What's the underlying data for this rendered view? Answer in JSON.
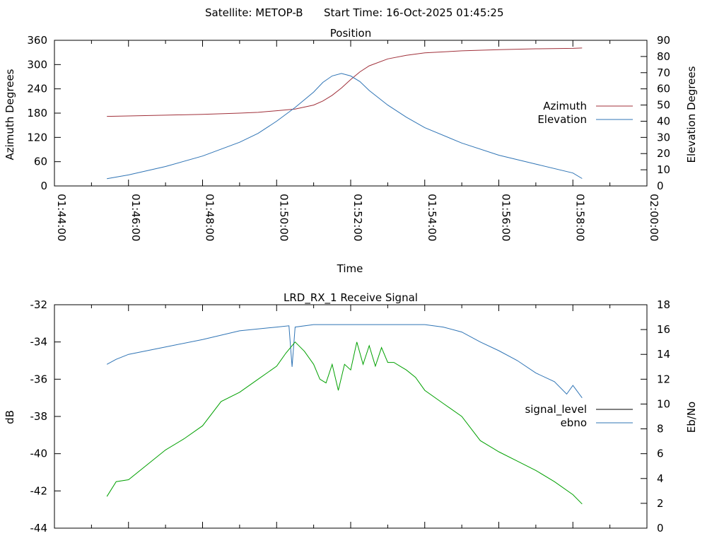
{
  "header": {
    "satellite_label": "Satellite: METOP-B",
    "start_time_label": "Start Time: 16-Oct-2025 01:45:25"
  },
  "colors": {
    "azimuth": "#a0303a",
    "elevation": "#2f74b5",
    "signal_level": "#000000",
    "ebno": "#2f74b5",
    "green_trace": "#00a000"
  },
  "chart_data": [
    {
      "type": "line",
      "title": "Position",
      "xlabel": "Time",
      "ylabel_left": "Azimuth Degrees",
      "ylabel_right": "Elevation Degrees",
      "x_tick_labels": [
        "01:44:00",
        "01:46:00",
        "01:48:00",
        "01:50:00",
        "01:52:00",
        "01:54:00",
        "01:56:00",
        "01:58:00",
        "02:00:00"
      ],
      "x_range_minutes": [
        0,
        16
      ],
      "ylim_left": [
        0,
        360
      ],
      "yticks_left": [
        "0",
        "60",
        "120",
        "180",
        "240",
        "300",
        "360"
      ],
      "ylim_right": [
        0,
        90
      ],
      "yticks_right": [
        "0",
        "10",
        "20",
        "30",
        "40",
        "50",
        "60",
        "70",
        "80",
        "90"
      ],
      "legend": {
        "position": "right",
        "entries": [
          "Azimuth",
          "Elevation"
        ]
      },
      "series": [
        {
          "name": "Azimuth",
          "axis": "left",
          "x": [
            "01:45:25",
            "01:46:00",
            "01:47:00",
            "01:48:00",
            "01:49:00",
            "01:49:30",
            "01:50:00",
            "01:50:30",
            "01:51:00",
            "01:51:15",
            "01:51:30",
            "01:51:45",
            "01:52:00",
            "01:52:15",
            "01:52:30",
            "01:53:00",
            "01:53:30",
            "01:54:00",
            "01:55:00",
            "01:56:00",
            "01:57:00",
            "01:58:00",
            "01:58:15"
          ],
          "values": [
            172,
            173,
            175,
            177,
            180,
            182,
            186,
            190,
            200,
            210,
            224,
            242,
            263,
            282,
            297,
            314,
            323,
            329,
            334,
            337,
            339,
            340,
            341
          ]
        },
        {
          "name": "Elevation",
          "axis": "right",
          "x": [
            "01:45:25",
            "01:46:00",
            "01:47:00",
            "01:48:00",
            "01:49:00",
            "01:49:30",
            "01:50:00",
            "01:50:30",
            "01:51:00",
            "01:51:15",
            "01:51:30",
            "01:51:45",
            "01:52:00",
            "01:52:15",
            "01:52:30",
            "01:53:00",
            "01:53:30",
            "01:54:00",
            "01:55:00",
            "01:56:00",
            "01:57:00",
            "01:58:00",
            "01:58:15"
          ],
          "values": [
            4.5,
            6.8,
            12,
            18.5,
            27,
            32.5,
            40,
            48.5,
            58,
            64,
            68,
            69.5,
            68,
            64.5,
            59,
            50,
            42.5,
            36,
            26.5,
            19,
            13.5,
            8,
            4.6
          ]
        }
      ]
    },
    {
      "type": "line",
      "title": "LRD_RX_1 Receive Signal",
      "xlabel": "",
      "ylabel_left": "dB",
      "ylabel_right": "Eb/No",
      "x_range_minutes": [
        0,
        16
      ],
      "ylim_left": [
        -44,
        -32
      ],
      "yticks_left": [
        "-44",
        "-42",
        "-40",
        "-38",
        "-36",
        "-34",
        "-32"
      ],
      "ylim_right": [
        0,
        18
      ],
      "yticks_right": [
        "0",
        "2",
        "4",
        "6",
        "8",
        "10",
        "12",
        "14",
        "16",
        "18"
      ],
      "legend": {
        "position": "right",
        "entries": [
          "signal_level",
          "ebno"
        ]
      },
      "series": [
        {
          "name": "ebno",
          "axis": "right",
          "x": [
            "01:45:25",
            "01:45:40",
            "01:46:00",
            "01:47:00",
            "01:48:00",
            "01:49:00",
            "01:50:00",
            "01:50:20",
            "01:50:25",
            "01:50:30",
            "01:51:00",
            "01:52:00",
            "01:53:00",
            "01:54:00",
            "01:54:30",
            "01:55:00",
            "01:55:30",
            "01:56:00",
            "01:56:30",
            "01:57:00",
            "01:57:30",
            "01:57:50",
            "01:58:00",
            "01:58:15"
          ],
          "values": [
            13.2,
            13.6,
            14.0,
            14.6,
            15.2,
            15.9,
            16.2,
            16.3,
            13.0,
            16.2,
            16.4,
            16.4,
            16.4,
            16.4,
            16.2,
            15.8,
            15.0,
            14.3,
            13.5,
            12.5,
            11.8,
            10.8,
            11.5,
            10.5
          ]
        },
        {
          "name": "",
          "axis": "left",
          "x": [
            "01:45:25",
            "01:45:40",
            "01:46:00",
            "01:46:30",
            "01:47:00",
            "01:47:30",
            "01:48:00",
            "01:48:30",
            "01:49:00",
            "01:49:30",
            "01:50:00",
            "01:50:15",
            "01:50:30",
            "01:50:45",
            "01:51:00",
            "01:51:10",
            "01:51:20",
            "01:51:30",
            "01:51:40",
            "01:51:50",
            "01:52:00",
            "01:52:10",
            "01:52:20",
            "01:52:30",
            "01:52:40",
            "01:52:50",
            "01:53:00",
            "01:53:10",
            "01:53:20",
            "01:53:30",
            "01:53:45",
            "01:54:00",
            "01:54:30",
            "01:55:00",
            "01:55:30",
            "01:56:00",
            "01:56:30",
            "01:57:00",
            "01:57:30",
            "01:58:00",
            "01:58:15"
          ],
          "values": [
            -42.3,
            -41.5,
            -41.4,
            -40.6,
            -39.8,
            -39.2,
            -38.5,
            -37.2,
            -36.7,
            -36.0,
            -35.3,
            -34.6,
            -34.0,
            -34.5,
            -35.2,
            -36.0,
            -36.2,
            -35.2,
            -36.6,
            -35.2,
            -35.5,
            -34.0,
            -35.2,
            -34.2,
            -35.3,
            -34.3,
            -35.1,
            -35.1,
            -35.3,
            -35.5,
            -35.9,
            -36.6,
            -37.3,
            -38.0,
            -39.3,
            -39.9,
            -40.4,
            -40.9,
            -41.5,
            -42.2,
            -42.7
          ]
        }
      ]
    }
  ]
}
